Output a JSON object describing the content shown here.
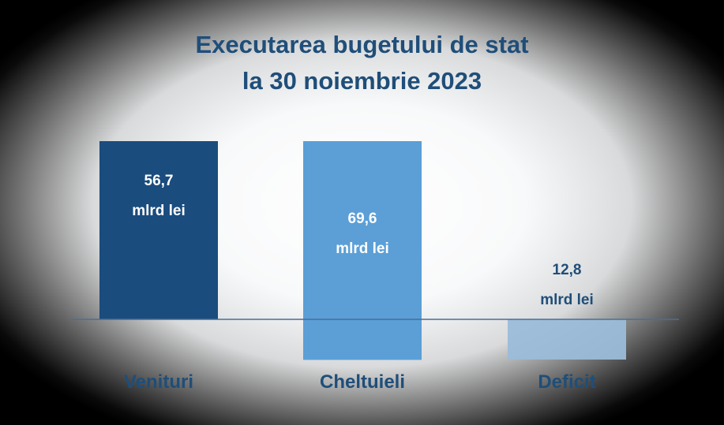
{
  "chart_data": {
    "type": "bar",
    "title": [
      "Executarea bugetului de stat",
      "la 30 noiembrie 2023"
    ],
    "xlabel": "",
    "ylabel": "",
    "grid": false,
    "legend": "none",
    "categories": [
      "Venituri",
      "Cheltuieli",
      "Deficit"
    ],
    "values": [
      56.7,
      69.6,
      -12.8
    ],
    "value_labels": [
      "56,7",
      "69,6",
      "12,8"
    ],
    "unit_label": "mlrd lei",
    "colors": {
      "bars": [
        "#1a4c7e",
        "#5b9fd6",
        "#9bbcd8"
      ],
      "title": "#1f4e79",
      "category_text": "#1f4e79",
      "label_on_bar": "#ffffff",
      "label_off_bar": "#1f4e79",
      "baseline": "#4a6f97"
    }
  }
}
